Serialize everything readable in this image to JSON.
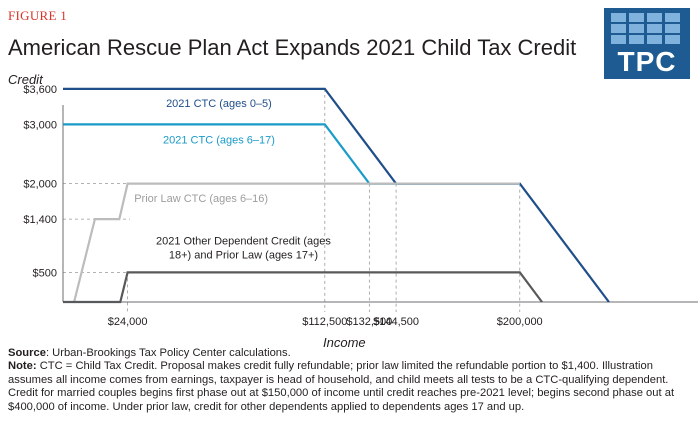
{
  "figure_label": "FIGURE 1",
  "title": "American Rescue Plan Act Expands 2021 Child Tax Credit",
  "logo": {
    "text": "TPC",
    "bg_color": "#1f5b93",
    "tile_color": "#7fb2dc"
  },
  "chart_data": {
    "type": "line",
    "ylabel": "Credit",
    "xlabel": "Income",
    "xlim": [
      -5000,
      280000
    ],
    "ylim": [
      0,
      3750
    ],
    "y_ticks": [
      {
        "value": 500,
        "label": "$500"
      },
      {
        "value": 1400,
        "label": "$1,400"
      },
      {
        "value": 2000,
        "label": "$2,000"
      },
      {
        "value": 3000,
        "label": "$3,000"
      },
      {
        "value": 3600,
        "label": "$3,600"
      }
    ],
    "x_ticks": [
      {
        "value": 24000,
        "label": "$24,000"
      },
      {
        "value": 112500,
        "label": "$112,500"
      },
      {
        "value": 132500,
        "label": "$132,500"
      },
      {
        "value": 144500,
        "label": "$144,500"
      },
      {
        "value": 200000,
        "label": "$200,000"
      }
    ],
    "series": [
      {
        "name": "2021 CTC (ages 0–5)",
        "color": "#1f4e8a",
        "x": [
          -5000,
          112500,
          144500,
          200000,
          240000
        ],
        "y": [
          3600,
          3600,
          2000,
          2000,
          0
        ]
      },
      {
        "name": "2021 CTC (ages 6–17)",
        "color": "#1a9bc9",
        "x": [
          -5000,
          112500,
          132500,
          200000
        ],
        "y": [
          3000,
          3000,
          2000,
          2000
        ]
      },
      {
        "name": "Prior Law CTC (ages 6–16)",
        "color": "#bcbcbc",
        "x": [
          0,
          9333,
          16000,
          20286,
          24000,
          200000
        ],
        "y": [
          0,
          1400,
          1400,
          1400,
          2000,
          2000
        ]
      },
      {
        "name": "2021 Other Dependent Credit (ages 18+) and Prior Law (ages 17+)",
        "color": "#58595b",
        "x": [
          -5000,
          20700,
          24000,
          200000,
          210000
        ],
        "y": [
          0,
          0,
          500,
          500,
          0
        ]
      }
    ],
    "annotations": [
      {
        "series": 0,
        "text": [
          "2021 CTC (ages 0–5)"
        ],
        "x": 65000,
        "y": 3290
      },
      {
        "series": 1,
        "text": [
          "2021 CTC (ages 6–17)"
        ],
        "x": 65000,
        "y": 2680
      },
      {
        "series": 2,
        "text": [
          "Prior Law CTC (ages 6–16)"
        ],
        "x": 57000,
        "y": 1690
      },
      {
        "series": 3,
        "text": [
          "2021 Other Dependent Credit (ages",
          "18+) and Prior Law (ages 17+)"
        ],
        "x": 76000,
        "y": 970
      }
    ]
  },
  "notes": {
    "source_label": "Source",
    "source_text": ": Urban-Brookings Tax Policy Center calculations.",
    "note_label": "Note:",
    "note_text": " CTC = Child Tax Credit. Proposal makes credit fully refundable; prior law limited the refundable portion to $1,400. Illustration assumes all income comes from earnings, taxpayer is head of household, and child meets all tests to be a CTC-qualifying dependent. Credit for married couples begins first phase out at $150,000 of income until credit reaches pre-2021 level; begins second phase out at $400,000 of income. Under prior law, credit for other dependents applied to dependents ages 17 and up."
  }
}
